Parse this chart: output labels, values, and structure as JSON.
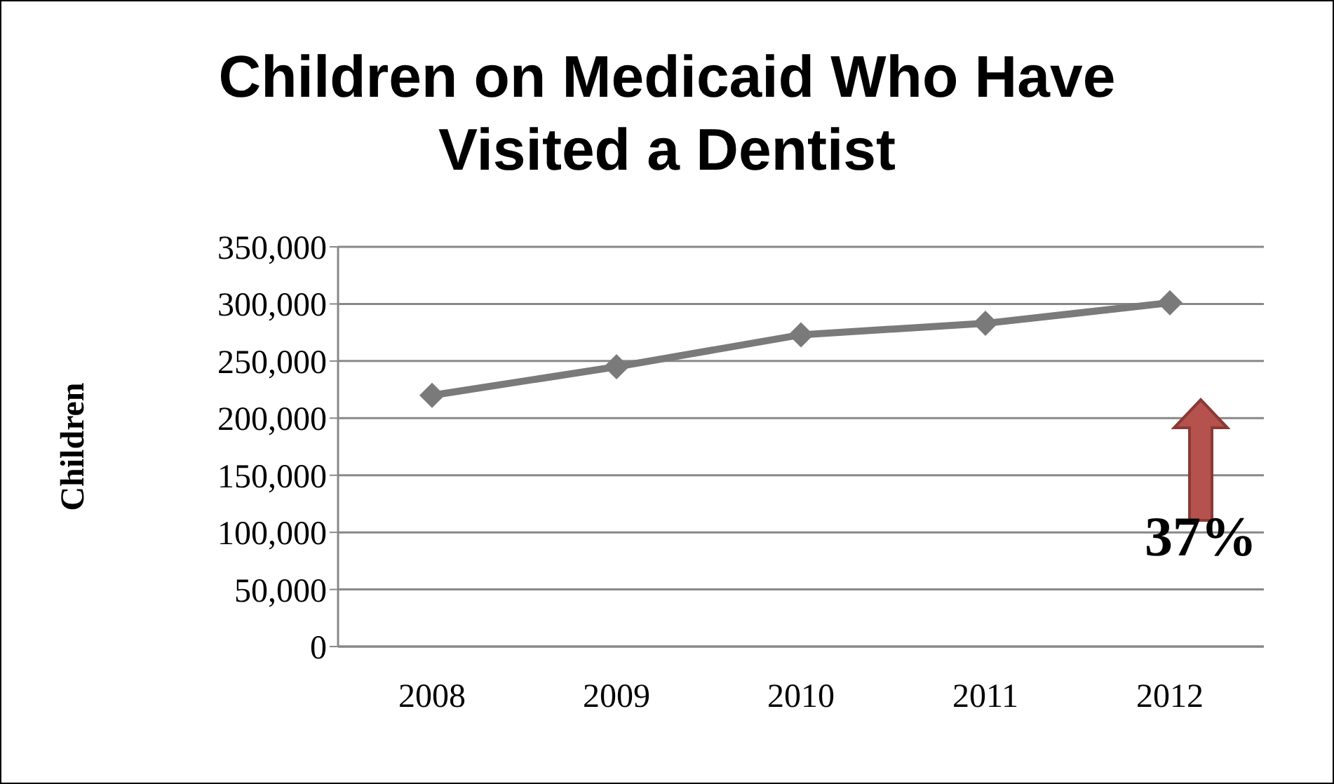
{
  "chart_data": {
    "type": "line",
    "title": "Children on Medicaid Who Have Visited a Dentist",
    "ylabel": "Children",
    "categories": [
      "2008",
      "2009",
      "2010",
      "2011",
      "2012"
    ],
    "series": [
      {
        "color": "#7a7a7a",
        "values": [
          220000,
          245000,
          273000,
          283000,
          301000
        ]
      }
    ],
    "ylim": [
      0,
      350000
    ],
    "yticks": [
      0,
      {
        "value": 50000,
        "label": "50,000"
      },
      {
        "value": 100000,
        "label": "100,000"
      },
      {
        "value": 150000,
        "label": "150,000"
      },
      {
        "value": 200000,
        "label": "200,000"
      },
      {
        "value": 250000,
        "label": "250,000"
      },
      {
        "value": 300000,
        "label": "300,000"
      },
      {
        "value": 350000,
        "label": "350,000"
      }
    ],
    "grid": "y",
    "marker": "diamond",
    "line_style": "solid",
    "annotations": [
      "37%"
    ]
  }
}
